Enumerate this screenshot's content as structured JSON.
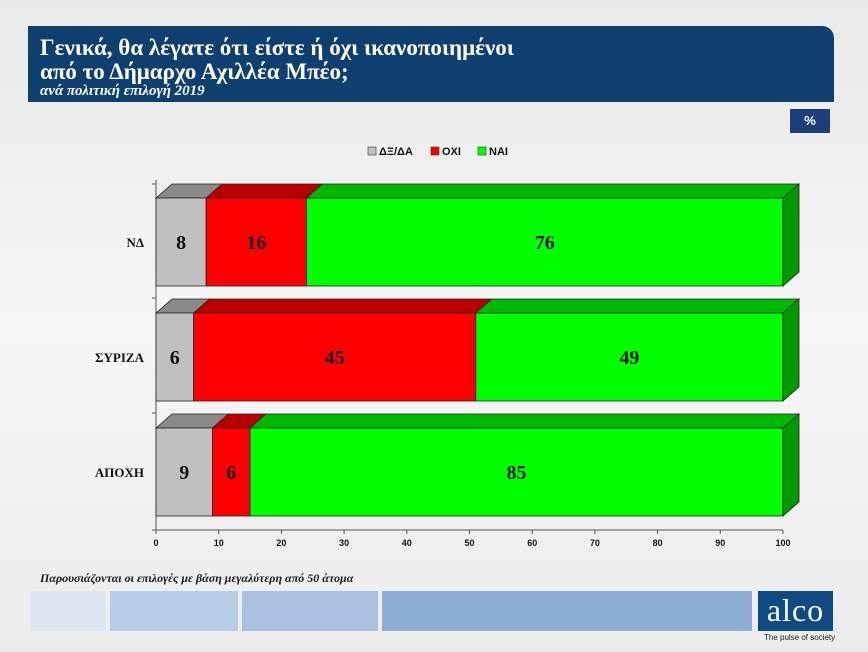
{
  "header": {
    "title_line1": "Γενικά, θα λέγατε ότι είστε ή όχι ικανοποιημένοι",
    "title_line2": "από το Δήμαρχο Αχιλλέα Μπέο;",
    "subtitle": "ανά πολιτική επιλογή  2019"
  },
  "badge": "%",
  "chart_data": {
    "type": "bar",
    "orientation": "horizontal",
    "stacked": true,
    "categories": [
      "ΝΔ",
      "ΣΥΡΙΖΑ",
      "ΑΠΟΧΗ"
    ],
    "series": [
      {
        "name": "ΔΞ/ΔΑ",
        "color": "#c0c0c0",
        "values": [
          8,
          6,
          9
        ]
      },
      {
        "name": "ΟΧΙ",
        "color": "#ff0000",
        "values": [
          16,
          45,
          6
        ]
      },
      {
        "name": "ΝΑΙ",
        "color": "#00ff00",
        "values": [
          76,
          49,
          85
        ]
      }
    ],
    "xlim": [
      0,
      100
    ],
    "xticks": [
      0,
      10,
      20,
      30,
      40,
      50,
      60,
      70,
      80,
      90,
      100
    ],
    "legend_position": "top-center",
    "style": "3d"
  },
  "footnote": "Παρουσιάζονται οι επιλογές με βάση μεγαλύτερη από 50 άτομα",
  "logo": {
    "text": "alco",
    "tagline": "The pulse of society",
    "color": "#0f4a82"
  }
}
